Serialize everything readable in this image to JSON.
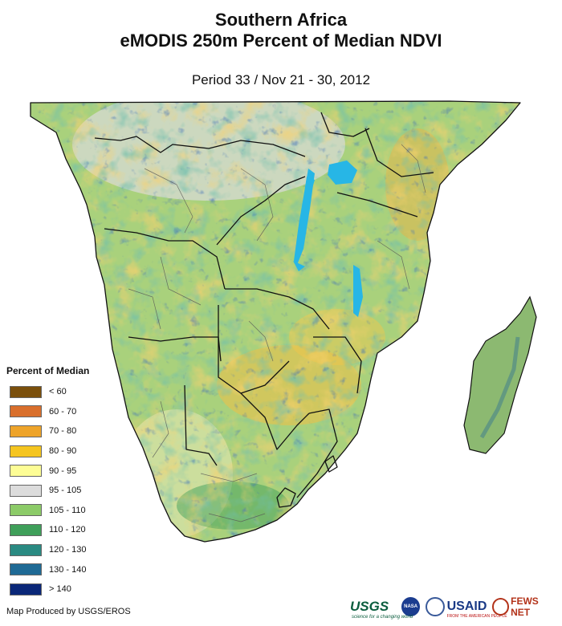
{
  "header": {
    "title_line1": "Southern Africa",
    "title_line2": "eMODIS 250m Percent of Median NDVI",
    "subtitle": "Period 33 / Nov 21 - 30, 2012"
  },
  "legend": {
    "title": "Percent of Median",
    "items": [
      {
        "label": "< 60",
        "color": "#7a4f0c"
      },
      {
        "label": "60 - 70",
        "color": "#d96f2c"
      },
      {
        "label": "70 - 80",
        "color": "#eea42a"
      },
      {
        "label": "80 - 90",
        "color": "#f5c520"
      },
      {
        "label": "90 - 95",
        "color": "#fdfd95"
      },
      {
        "label": "95 - 105",
        "color": "#dcdcdc"
      },
      {
        "label": "105 - 110",
        "color": "#8ccb68"
      },
      {
        "label": "110 - 120",
        "color": "#3f9f5a"
      },
      {
        "label": "120 - 130",
        "color": "#2a8a82"
      },
      {
        "label": "130 - 140",
        "color": "#1f6a95"
      },
      {
        "label": "> 140",
        "color": "#0a2778"
      }
    ]
  },
  "map": {
    "water_color": "#27b6e6",
    "border_color": "#111111",
    "admin_color": "#555555"
  },
  "footer": {
    "credit": "Map Produced by USGS/EROS",
    "logos": {
      "usgs": "USGS",
      "usgs_tagline": "science for a changing world",
      "nasa": "NASA",
      "usaid": "USAID",
      "usaid_tagline": "FROM THE AMERICAN PEOPLE",
      "fews": "FEWS NET"
    }
  }
}
